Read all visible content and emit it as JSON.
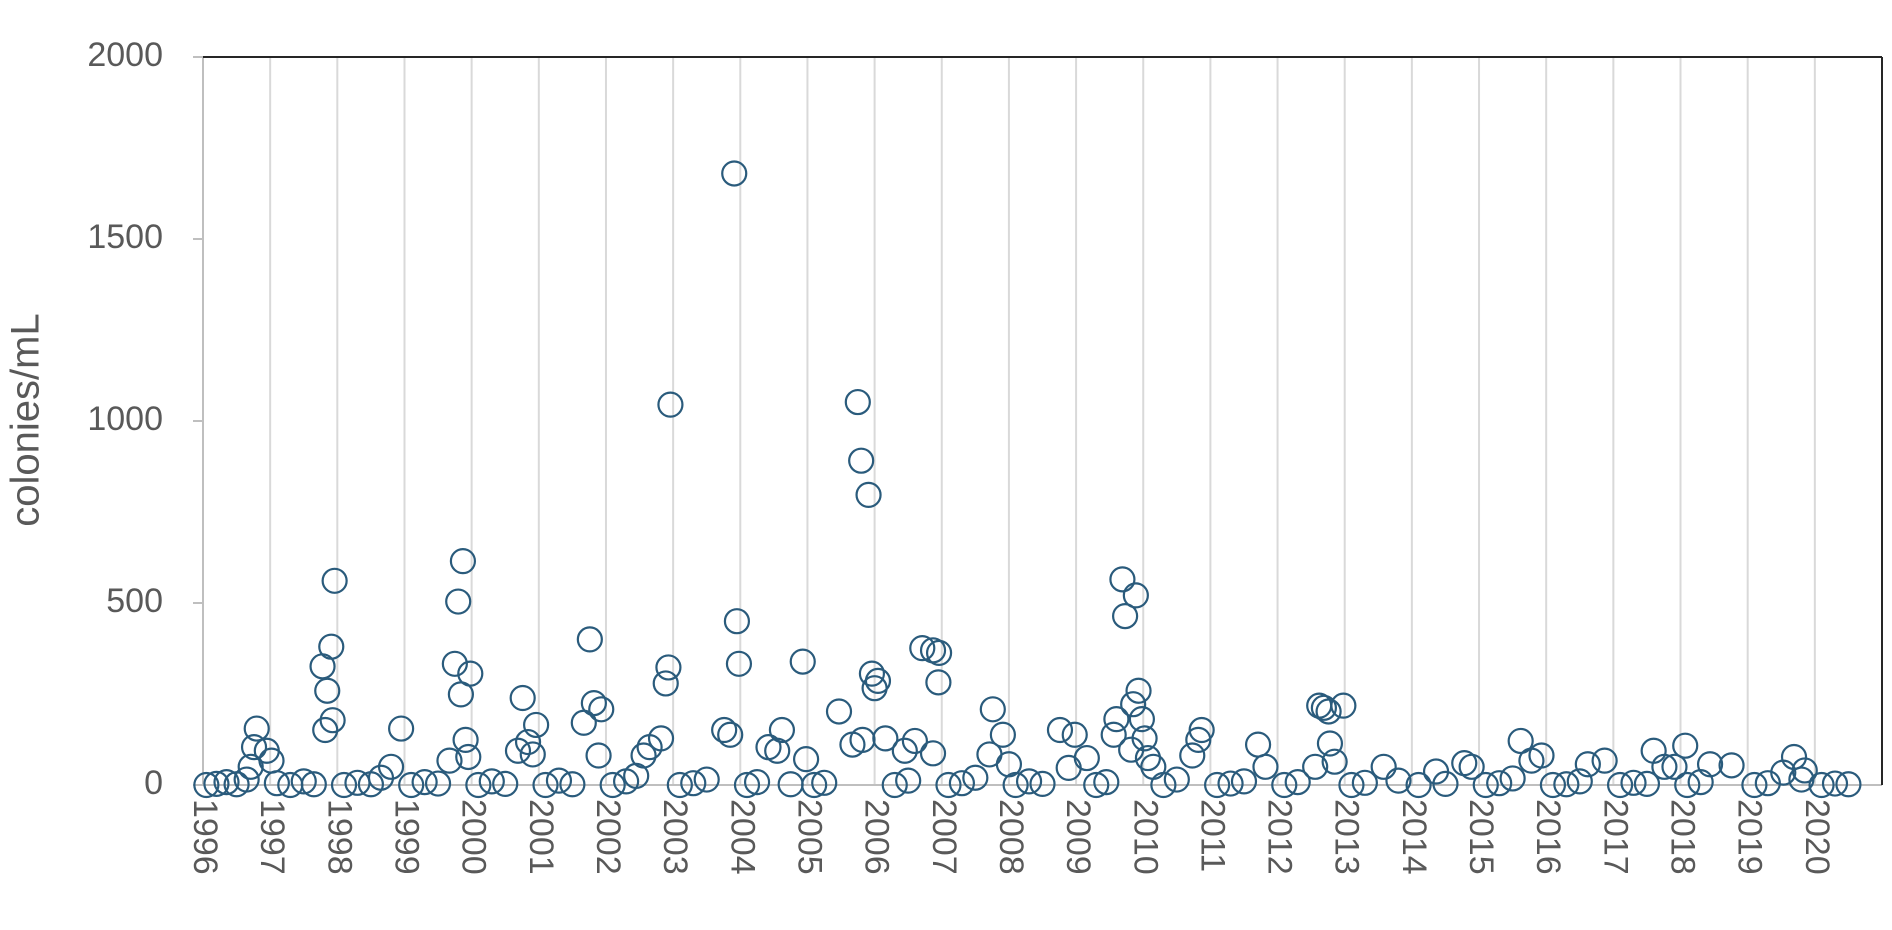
{
  "chart_data": {
    "type": "scatter",
    "y_label": "colonies/mL",
    "color": "#2a5b7c",
    "grid": true,
    "xlim": [
      1996,
      2021
    ],
    "xticks": [
      1996,
      1997,
      1998,
      1999,
      2000,
      2001,
      2002,
      2003,
      2004,
      2005,
      2006,
      2007,
      2008,
      2009,
      2010,
      2011,
      2012,
      2013,
      2014,
      2015,
      2016,
      2017,
      2018,
      2019,
      2020
    ],
    "ylim": [
      0,
      2000
    ],
    "yticks": [
      0,
      500,
      1000,
      1500,
      2000
    ],
    "x": [
      1996.8,
      1996.76,
      1996.95,
      1997.02,
      1996.71,
      1997.78,
      1997.85,
      1997.91,
      1997.93,
      1997.96,
      1997.82,
      1998.95,
      1998.8,
      1999.75,
      1999.8,
      1999.87,
      1999.84,
      1999.98,
      1999.91,
      1999.95,
      1999.67,
      2000.76,
      2000.96,
      2000.84,
      2000.69,
      2000.91,
      2001.76,
      2001.82,
      2001.93,
      2001.67,
      2001.89,
      2002.96,
      2002.93,
      2002.89,
      2002.82,
      2002.65,
      2002.56,
      2003.91,
      2003.95,
      2003.98,
      2003.76,
      2003.85,
      2004.93,
      2004.62,
      2004.42,
      2004.55,
      2004.98,
      2005.75,
      2005.8,
      2005.91,
      2005.96,
      2006.0,
      2006.05,
      2005.47,
      2005.82,
      2005.67,
      2006.16,
      2006.71,
      2006.87,
      2006.96,
      2006.95,
      2006.6,
      2006.87,
      2006.45,
      2007.76,
      2007.91,
      2007.71,
      2008.0,
      2008.76,
      2008.98,
      2009.16,
      2008.89,
      2009.69,
      2009.73,
      2009.89,
      2009.93,
      2009.85,
      2009.6,
      2009.98,
      2009.56,
      2010.02,
      2009.82,
      2010.07,
      2010.15,
      2010.87,
      2010.82,
      2010.73,
      2011.71,
      2011.82,
      2012.62,
      2012.69,
      2012.76,
      2012.98,
      2012.78,
      2012.85,
      2012.56,
      2013.58,
      2014.36,
      2014.78,
      2014.89,
      2015.62,
      2015.93,
      2015.78,
      2016.62,
      2016.87,
      2017.6,
      2018.07,
      2017.76,
      2017.91,
      2018.44,
      2018.76,
      2019.69,
      2019.85,
      2019.53,
      1996.05,
      1996.2,
      1996.35,
      1996.5,
      1996.65,
      1997.1,
      1997.3,
      1997.5,
      1997.65,
      1998.1,
      1998.3,
      1998.5,
      1998.65,
      1999.1,
      1999.3,
      1999.5,
      2000.1,
      2000.3,
      2000.5,
      2001.1,
      2001.3,
      2001.5,
      2002.1,
      2002.3,
      2002.45,
      2003.1,
      2003.3,
      2003.5,
      2004.1,
      2004.25,
      2004.75,
      2005.1,
      2005.25,
      2006.3,
      2006.5,
      2007.1,
      2007.3,
      2007.5,
      2008.1,
      2008.3,
      2008.5,
      2009.3,
      2009.45,
      2010.3,
      2010.5,
      2011.1,
      2011.3,
      2011.5,
      2012.1,
      2012.3,
      2013.1,
      2013.3,
      2013.8,
      2014.1,
      2014.5,
      2015.1,
      2015.3,
      2015.5,
      2016.1,
      2016.3,
      2016.5,
      2017.1,
      2017.3,
      2017.5,
      2018.1,
      2018.3,
      2019.1,
      2019.3,
      2019.8,
      2020.1,
      2020.3,
      2020.5
    ],
    "values": [
      155,
      104,
      94,
      67,
      50,
      326,
      259,
      380,
      178,
      561,
      151,
      155,
      50,
      333,
      504,
      615,
      249,
      306,
      124,
      77,
      67,
      239,
      165,
      118,
      94,
      84,
      400,
      225,
      208,
      171,
      81,
      1045,
      323,
      279,
      128,
      104,
      81,
      1680,
      450,
      333,
      151,
      138,
      339,
      151,
      104,
      94,
      71,
      1052,
      891,
      797,
      306,
      266,
      286,
      202,
      124,
      111,
      128,
      376,
      370,
      363,
      282,
      121,
      87,
      94,
      208,
      138,
      84,
      57,
      151,
      138,
      74,
      47,
      565,
      464,
      521,
      259,
      222,
      181,
      181,
      138,
      128,
      97,
      74,
      50,
      151,
      124,
      81,
      111,
      50,
      218,
      212,
      202,
      218,
      114,
      64,
      50,
      50,
      37,
      60,
      50,
      121,
      81,
      67,
      57,
      67,
      94,
      108,
      50,
      50,
      57,
      54,
      77,
      40,
      34,
      0,
      3,
      8,
      2,
      15,
      5,
      0,
      10,
      2,
      0,
      6,
      2,
      20,
      0,
      8,
      4,
      0,
      10,
      3,
      0,
      12,
      2,
      0,
      10,
      25,
      0,
      5,
      15,
      0,
      8,
      2,
      0,
      6,
      0,
      12,
      0,
      5,
      20,
      0,
      10,
      3,
      0,
      8,
      0,
      15,
      0,
      4,
      10,
      0,
      8,
      0,
      6,
      12,
      0,
      3,
      0,
      5,
      18,
      0,
      2,
      10,
      0,
      6,
      3,
      0,
      8,
      0,
      5,
      15,
      0,
      4,
      2
    ]
  }
}
